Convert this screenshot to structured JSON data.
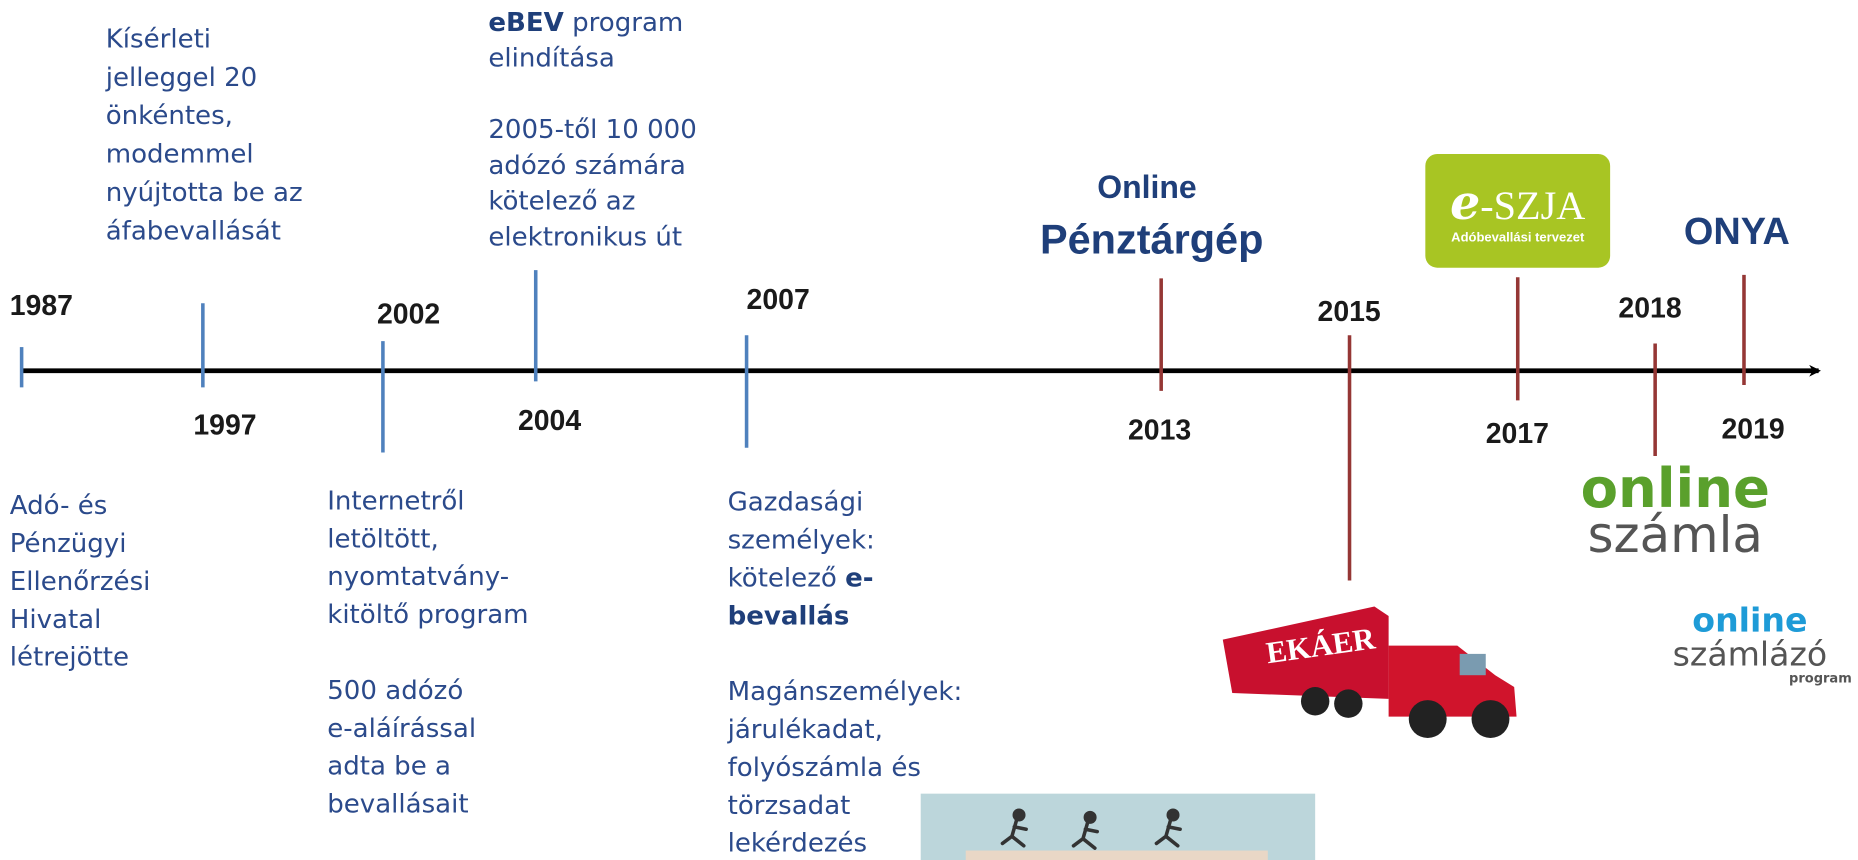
{
  "events": [
    {
      "year": "1987",
      "color": "#4f81bd"
    },
    {
      "year": "1997",
      "color": "#4f81bd"
    },
    {
      "year": "2002",
      "color": "#4f81bd"
    },
    {
      "year": "2004",
      "color": "#4f81bd"
    },
    {
      "year": "2007",
      "color": "#4f81bd"
    },
    {
      "year": "2013",
      "color": "#953735"
    },
    {
      "year": "2015",
      "color": "#953735"
    },
    {
      "year": "2017",
      "color": "#953735"
    },
    {
      "year": "2018",
      "color": "#953735"
    },
    {
      "year": "2019",
      "color": "#953735"
    }
  ],
  "blocks": [
    {
      "paragraphs": [
        [
          [
            {
              "text": "Kísérleti"
            }
          ],
          [
            {
              "text": "jelleggel 20"
            }
          ],
          [
            {
              "text": "önkéntes,"
            }
          ],
          [
            {
              "text": "modemmel"
            }
          ],
          [
            {
              "text": "nyújtotta be az"
            }
          ],
          [
            {
              "text": "áfabevallását"
            }
          ]
        ]
      ]
    },
    {
      "paragraphs": [
        [
          [
            {
              "text": "eBEV",
              "bold": true
            },
            {
              "text": " program"
            }
          ],
          [
            {
              "text": "elindítása"
            }
          ]
        ],
        [
          [
            {
              "text": "2005-től 10 000"
            }
          ],
          [
            {
              "text": "adózó számára"
            }
          ],
          [
            {
              "text": "kötelező az"
            }
          ],
          [
            {
              "text": "elektronikus út"
            }
          ]
        ]
      ]
    },
    {
      "paragraphs": [
        [
          [
            {
              "text": "Adó- és"
            }
          ],
          [
            {
              "text": "Pénzügyi"
            }
          ],
          [
            {
              "text": "Ellenőrzési"
            }
          ],
          [
            {
              "text": "Hivatal"
            }
          ],
          [
            {
              "text": "létrejötte"
            }
          ]
        ]
      ]
    },
    {
      "paragraphs": [
        [
          [
            {
              "text": "Internetről"
            }
          ],
          [
            {
              "text": "letöltött,"
            }
          ],
          [
            {
              "text": "nyomtatvány-"
            }
          ],
          [
            {
              "text": "kitöltő program"
            }
          ]
        ],
        [
          [
            {
              "text": "500 adózó"
            }
          ],
          [
            {
              "text": "e-aláírással"
            }
          ],
          [
            {
              "text": "adta be a"
            }
          ],
          [
            {
              "text": "bevallásait"
            }
          ]
        ]
      ]
    },
    {
      "paragraphs": [
        [
          [
            {
              "text": "Gazdasági"
            }
          ],
          [
            {
              "text": "személyek:"
            }
          ],
          [
            {
              "text": "kötelező "
            },
            {
              "text": "e-",
              "bold": true
            }
          ],
          [
            {
              "text": "bevallás",
              "bold": true
            }
          ]
        ],
        [
          [
            {
              "text": "Magánszemélyek:"
            }
          ],
          [
            {
              "text": "járulékadat,"
            }
          ],
          [
            {
              "text": "folyószámla és"
            }
          ],
          [
            {
              "text": "törzsadat"
            }
          ],
          [
            {
              "text": "lekérdezés"
            }
          ]
        ]
      ]
    }
  ],
  "labels": {
    "online": "Online",
    "penztargep": "Pénztárgép",
    "onya": "ONYA"
  },
  "eszja": {
    "e": "e",
    "szja": "-SZJA",
    "subtitle": "Adóbevallási tervezet"
  },
  "online_szamla": {
    "top": "online",
    "bottom": "számla"
  },
  "online_szamlazo": {
    "top": "online",
    "bottom": "számlázó",
    "sub": "program"
  },
  "truck": {
    "label": "EKÁER"
  }
}
